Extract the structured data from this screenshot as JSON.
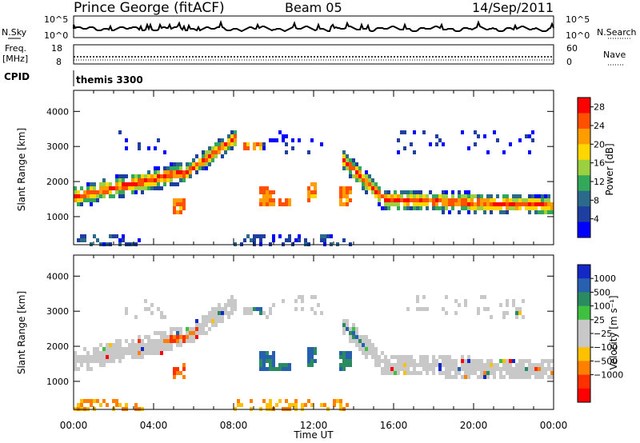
{
  "header": {
    "station": "Prince George (fitACF)",
    "beam": "Beam 05",
    "date": "14/Sep/2011"
  },
  "side_labels": {
    "nsky": "N.Sky",
    "nsearch": "N.Search",
    "freq_line1": "Freq.",
    "freq_line2": "[MHz]",
    "nave": "Nave",
    "cpid": "CPID",
    "cpid_value": "themis 3300"
  },
  "noise_panel": {
    "left_ticks": [
      "10^5",
      "10^0"
    ],
    "right_ticks": [
      "10^5",
      "10^0"
    ]
  },
  "freq_panel": {
    "left_ticks": [
      "18",
      "8"
    ],
    "right_ticks": [
      "60",
      "0"
    ]
  },
  "colors": {
    "power_scale": [
      "#0000ff",
      "#1f3fa0",
      "#2c6a8c",
      "#33a85a",
      "#9bd040",
      "#ffd700",
      "#ff9d00",
      "#ff5000",
      "#ff0000"
    ],
    "velocity_scale": [
      "#1428c8",
      "#2860b0",
      "#2a8a60",
      "#40c040",
      "#c8c8c8",
      "#c8c8c8",
      "#ffc000",
      "#ff8000",
      "#ff3000",
      "#ff0000"
    ]
  },
  "chart_data": [
    {
      "type": "heatmap",
      "title": "",
      "ylabel": "Slant Range [km]",
      "xlabel": "",
      "x_ticks": [
        "00:00",
        "04:00",
        "08:00",
        "12:00",
        "16:00",
        "20:00",
        "00:00"
      ],
      "y_ticks": [
        "1000",
        "2000",
        "3000",
        "4000"
      ],
      "ylim": [
        200,
        4600
      ],
      "colorbar": {
        "label": "Power [dB]",
        "ticks": [
          "4",
          "8",
          "12",
          "16",
          "20",
          "24",
          "28"
        ],
        "range": [
          0,
          30
        ]
      }
    },
    {
      "type": "heatmap",
      "title": "",
      "ylabel": "Slant Range [km]",
      "xlabel": "Time UT",
      "x_ticks": [
        "00:00",
        "04:00",
        "08:00",
        "12:00",
        "16:00",
        "20:00",
        "00:00"
      ],
      "y_ticks": [
        "1000",
        "2000",
        "3000",
        "4000"
      ],
      "ylim": [
        200,
        4600
      ],
      "colorbar": {
        "label": "Velocity [m s⁻¹]",
        "ticks": [
          "1000",
          "500",
          "100",
          "25",
          "−25",
          "−100",
          "−500",
          "−1000"
        ]
      }
    }
  ]
}
